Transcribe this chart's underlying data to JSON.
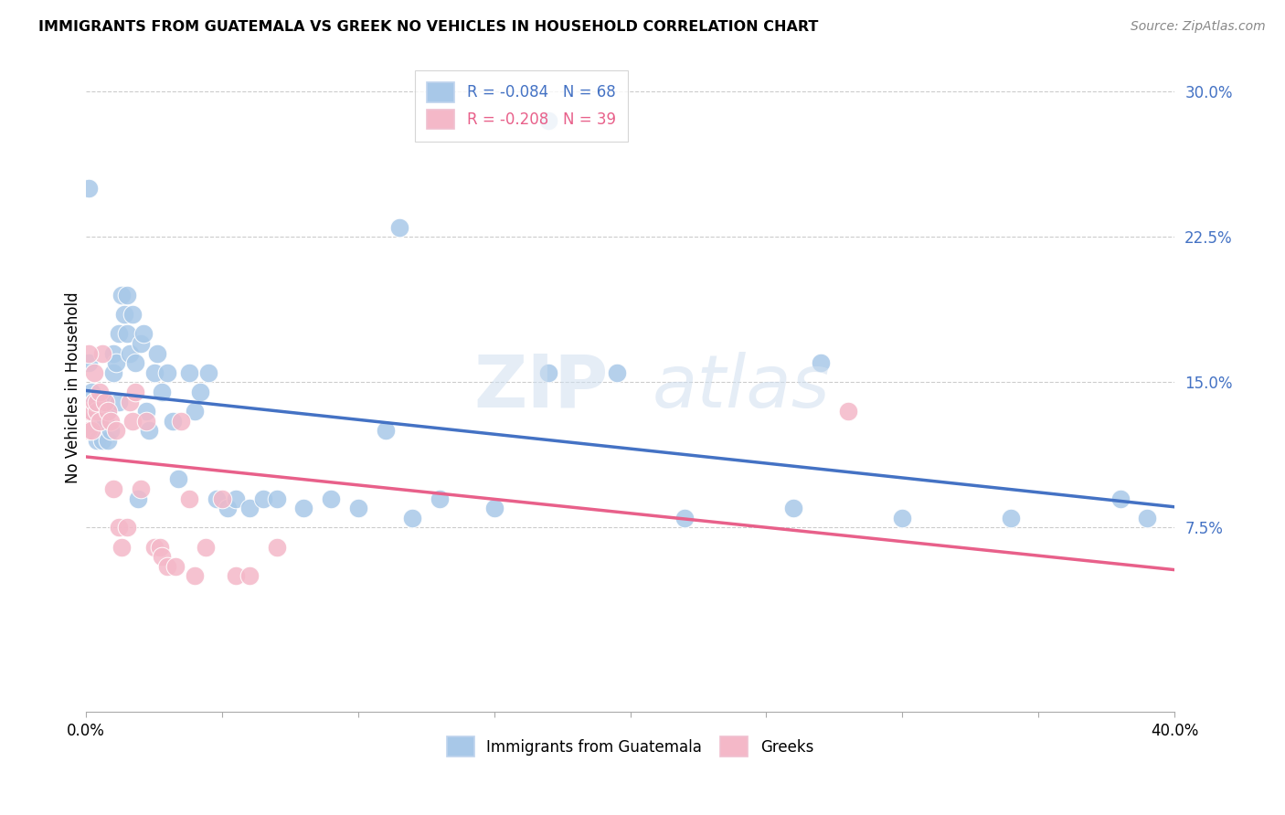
{
  "title": "IMMIGRANTS FROM GUATEMALA VS GREEK NO VEHICLES IN HOUSEHOLD CORRELATION CHART",
  "source": "Source: ZipAtlas.com",
  "ylabel": "No Vehicles in Household",
  "ytick_vals": [
    0.075,
    0.15,
    0.225,
    0.3
  ],
  "ytick_labels": [
    "7.5%",
    "15.0%",
    "22.5%",
    "30.0%"
  ],
  "xmin": 0.0,
  "xmax": 0.4,
  "ymin": -0.02,
  "ymax": 0.315,
  "legend1_text": "R = -0.084   N = 68",
  "legend2_text": "R = -0.208   N = 39",
  "color_blue": "#a8c8e8",
  "color_pink": "#f4b8c8",
  "color_blue_line": "#4472C4",
  "color_pink_line": "#E8608A",
  "watermark": "ZIPatlas",
  "blue_scatter_x": [
    0.001,
    0.002,
    0.002,
    0.003,
    0.003,
    0.004,
    0.004,
    0.005,
    0.005,
    0.006,
    0.006,
    0.007,
    0.007,
    0.008,
    0.008,
    0.009,
    0.01,
    0.01,
    0.011,
    0.012,
    0.012,
    0.013,
    0.014,
    0.015,
    0.015,
    0.016,
    0.017,
    0.018,
    0.019,
    0.02,
    0.021,
    0.022,
    0.023,
    0.025,
    0.026,
    0.028,
    0.03,
    0.032,
    0.034,
    0.038,
    0.04,
    0.042,
    0.045,
    0.048,
    0.052,
    0.055,
    0.06,
    0.065,
    0.07,
    0.08,
    0.09,
    0.1,
    0.11,
    0.13,
    0.15,
    0.17,
    0.195,
    0.22,
    0.26,
    0.3,
    0.34,
    0.38,
    0.001,
    0.39,
    0.17,
    0.115,
    0.27,
    0.12
  ],
  "blue_scatter_y": [
    0.16,
    0.135,
    0.145,
    0.14,
    0.125,
    0.13,
    0.12,
    0.14,
    0.13,
    0.13,
    0.12,
    0.14,
    0.13,
    0.135,
    0.12,
    0.125,
    0.155,
    0.165,
    0.16,
    0.175,
    0.14,
    0.195,
    0.185,
    0.195,
    0.175,
    0.165,
    0.185,
    0.16,
    0.09,
    0.17,
    0.175,
    0.135,
    0.125,
    0.155,
    0.165,
    0.145,
    0.155,
    0.13,
    0.1,
    0.155,
    0.135,
    0.145,
    0.155,
    0.09,
    0.085,
    0.09,
    0.085,
    0.09,
    0.09,
    0.085,
    0.09,
    0.085,
    0.125,
    0.09,
    0.085,
    0.155,
    0.155,
    0.08,
    0.085,
    0.08,
    0.08,
    0.09,
    0.25,
    0.08,
    0.285,
    0.23,
    0.16,
    0.08
  ],
  "pink_scatter_x": [
    0.001,
    0.001,
    0.002,
    0.002,
    0.003,
    0.003,
    0.004,
    0.004,
    0.005,
    0.005,
    0.006,
    0.007,
    0.008,
    0.009,
    0.01,
    0.011,
    0.012,
    0.013,
    0.015,
    0.016,
    0.017,
    0.018,
    0.02,
    0.022,
    0.025,
    0.027,
    0.028,
    0.03,
    0.033,
    0.035,
    0.038,
    0.04,
    0.044,
    0.05,
    0.055,
    0.06,
    0.07,
    0.28,
    0.001
  ],
  "pink_scatter_y": [
    0.135,
    0.125,
    0.125,
    0.135,
    0.155,
    0.14,
    0.135,
    0.14,
    0.13,
    0.145,
    0.165,
    0.14,
    0.135,
    0.13,
    0.095,
    0.125,
    0.075,
    0.065,
    0.075,
    0.14,
    0.13,
    0.145,
    0.095,
    0.13,
    0.065,
    0.065,
    0.06,
    0.055,
    0.055,
    0.13,
    0.09,
    0.05,
    0.065,
    0.09,
    0.05,
    0.05,
    0.065,
    0.135,
    0.165
  ]
}
